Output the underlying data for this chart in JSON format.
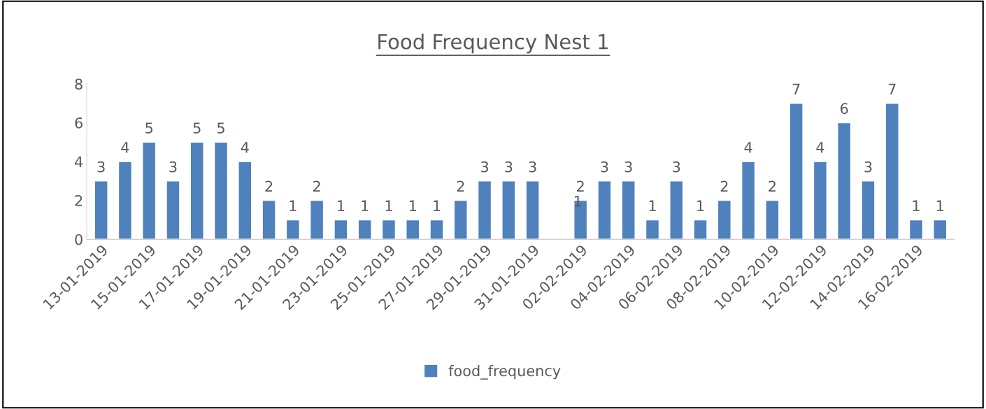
{
  "chart_data": {
    "type": "bar",
    "title": "Food Frequency Nest 1",
    "categories": [
      "13-01-2019",
      null,
      "15-01-2019",
      null,
      "17-01-2019",
      null,
      "19-01-2019",
      null,
      "21-01-2019",
      null,
      "23-01-2019",
      null,
      "25-01-2019",
      null,
      "27-01-2019",
      null,
      "29-01-2019",
      null,
      "31-01-2019",
      null,
      "02-02-2019",
      null,
      "04-02-2019",
      null,
      "06-02-2019",
      null,
      "08-02-2019",
      null,
      "10-02-2019",
      null,
      "12-02-2019",
      null,
      "14-02-2019",
      null,
      "16-02-2019",
      null
    ],
    "series": [
      {
        "name": "food_frequency",
        "color": "#4f81bd",
        "values": [
          3,
          4,
          5,
          3,
          5,
          5,
          4,
          2,
          1,
          2,
          1,
          1,
          1,
          1,
          1,
          2,
          3,
          3,
          3,
          null,
          2,
          3,
          3,
          1,
          3,
          1,
          2,
          4,
          2,
          7,
          4,
          6,
          3,
          7,
          1,
          1
        ]
      }
    ],
    "ylim": [
      0,
      8
    ],
    "yticks": [
      0,
      2,
      4,
      6,
      8
    ],
    "grid": false,
    "legend": "bottom",
    "data_labels": true,
    "annotations": [
      "1"
    ]
  }
}
